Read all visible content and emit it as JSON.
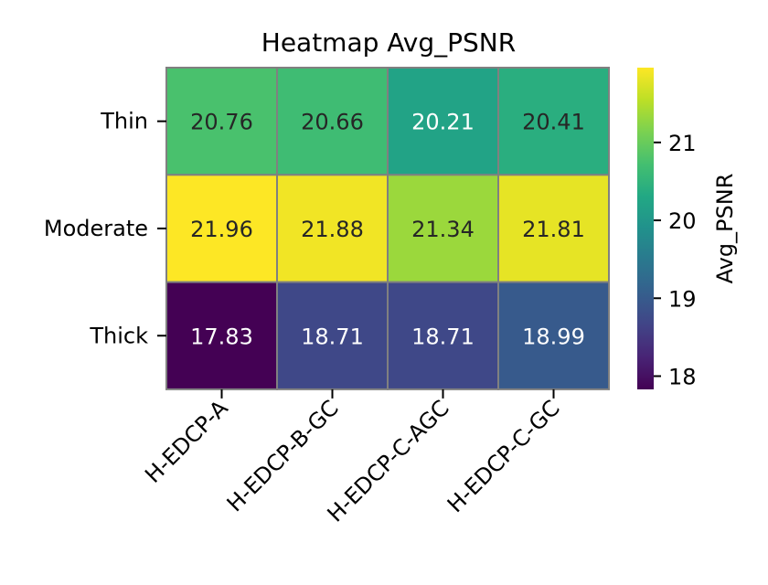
{
  "chart_data": {
    "type": "heatmap",
    "title": "Heatmap Avg_PSNR",
    "rows": [
      "Thin",
      "Moderate",
      "Thick"
    ],
    "columns": [
      "H-EDCP-A",
      "H-EDCP-B-GC",
      "H-EDCP-C-AGC",
      "H-EDCP-C-GC"
    ],
    "values": [
      [
        20.76,
        20.66,
        20.21,
        20.41
      ],
      [
        21.96,
        21.88,
        21.34,
        21.81
      ],
      [
        17.83,
        18.71,
        18.71,
        18.99
      ]
    ],
    "value_labels": [
      [
        "20.76",
        "20.66",
        "20.21",
        "20.41"
      ],
      [
        "21.96",
        "21.88",
        "21.34",
        "21.81"
      ],
      [
        "17.83",
        "18.71",
        "18.71",
        "18.99"
      ]
    ],
    "colormap": "viridis",
    "colorbar": {
      "label": "Avg_PSNR",
      "range": [
        17.83,
        21.96
      ],
      "ticks": [
        18,
        19,
        20,
        21
      ],
      "tick_labels": [
        "18",
        "19",
        "20",
        "21"
      ]
    },
    "cell_border_color": "#808080",
    "annotation_text_colors": {
      "dark_cells": "#ffffff",
      "light_cells": "#262626"
    }
  }
}
